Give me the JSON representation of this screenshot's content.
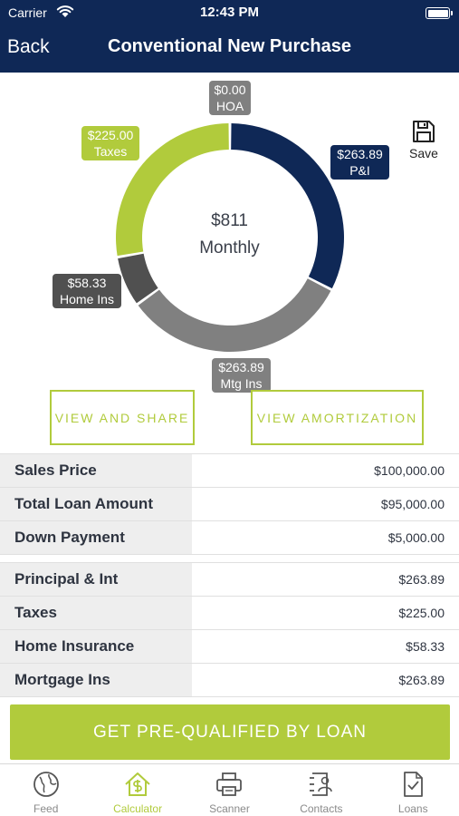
{
  "status": {
    "carrier": "Carrier",
    "time": "12:43 PM"
  },
  "nav": {
    "back": "Back",
    "title": "Conventional New Purchase"
  },
  "summary": {
    "amount": "$811",
    "label": "Monthly"
  },
  "segments": [
    {
      "key": "pi",
      "amount": "$263.89",
      "label": "P&I",
      "value": 263.89,
      "color": "#0f2856"
    },
    {
      "key": "mtg",
      "amount": "$263.89",
      "label": "Mtg Ins",
      "value": 263.89,
      "color": "#808080"
    },
    {
      "key": "home",
      "amount": "$58.33",
      "label": "Home Ins",
      "value": 58.33,
      "color": "#505050"
    },
    {
      "key": "tax",
      "amount": "$225.00",
      "label": "Taxes",
      "value": 225.0,
      "color": "#b1cb3c"
    },
    {
      "key": "hoa",
      "amount": "$0.00",
      "label": "HOA",
      "value": 0.0,
      "color": "#808080"
    }
  ],
  "save": "Save",
  "buttons": {
    "share": "VIEW AND SHARE",
    "amort": "VIEW AMORTIZATION"
  },
  "loan": [
    {
      "label": "Sales Price",
      "value": "$100,000.00"
    },
    {
      "label": "Total Loan Amount",
      "value": "$95,000.00"
    },
    {
      "label": "Down Payment",
      "value": "$5,000.00"
    }
  ],
  "breakdown": [
    {
      "label": "Principal & Int",
      "value": "$263.89"
    },
    {
      "label": "Taxes",
      "value": "$225.00"
    },
    {
      "label": "Home Insurance",
      "value": "$58.33"
    },
    {
      "label": "Mortgage Ins",
      "value": "$263.89"
    }
  ],
  "cta": "GET PRE-QUALIFIED BY LOAN",
  "tabs": [
    {
      "label": "Feed",
      "icon": "globe-icon"
    },
    {
      "label": "Calculator",
      "icon": "house-dollar-icon",
      "active": true
    },
    {
      "label": "Scanner",
      "icon": "printer-icon"
    },
    {
      "label": "Contacts",
      "icon": "contact-icon"
    },
    {
      "label": "Loans",
      "icon": "document-check-icon"
    }
  ],
  "colors": {
    "navy": "#0f2856",
    "accent": "#b1cb3c",
    "gray": "#808080",
    "darkgray": "#505050"
  }
}
